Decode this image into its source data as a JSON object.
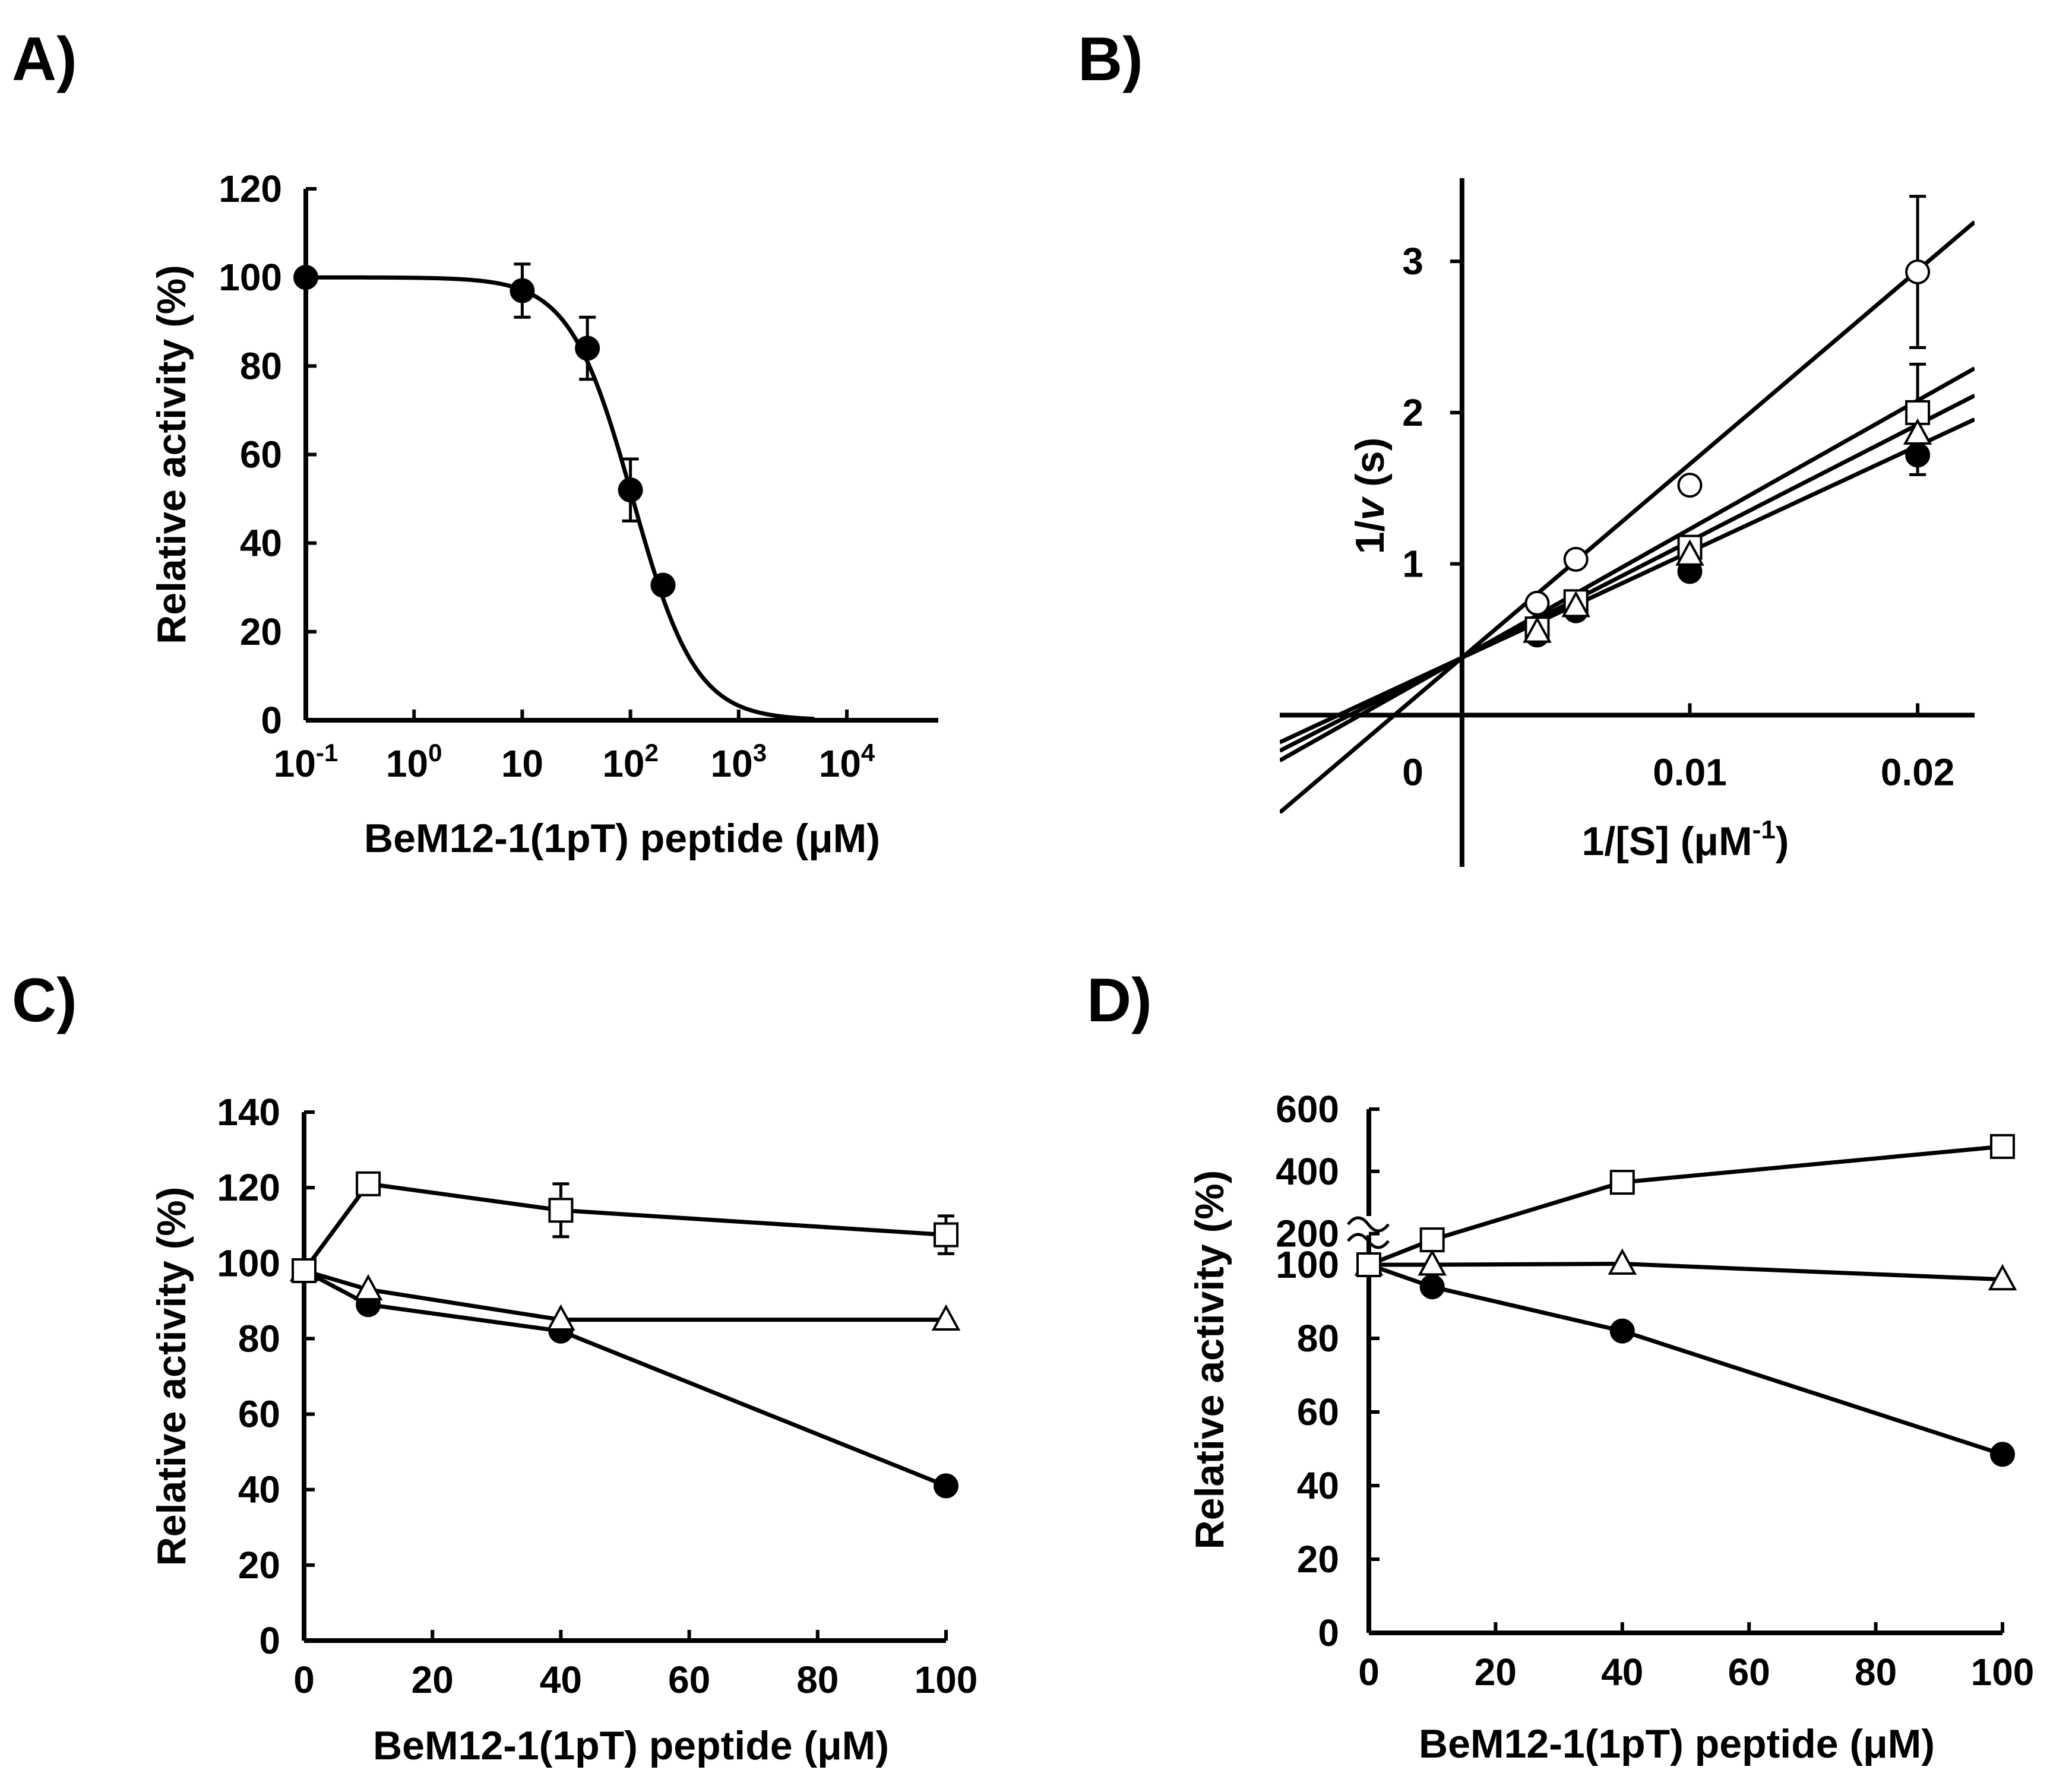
{
  "chart_data": [
    {
      "panel": "A)",
      "type": "scatter",
      "x_scale": "log",
      "xlabel": "BeM12-1(1pT) peptide (μM)",
      "ylabel": "Relative activity (%)",
      "xlim": [
        0.1,
        70000
      ],
      "ylim": [
        0,
        120
      ],
      "x_ticks": [
        0.1,
        1,
        10,
        100,
        1000,
        10000
      ],
      "x_tick_labels": [
        {
          "base": "10",
          "exp": "-1"
        },
        {
          "base": "10",
          "exp": "0"
        },
        {
          "base": "10",
          "exp": ""
        },
        {
          "base": "10",
          "exp": "2"
        },
        {
          "base": "10",
          "exp": "3"
        },
        {
          "base": "10",
          "exp": "4"
        }
      ],
      "y_ticks": [
        0,
        20,
        40,
        60,
        80,
        100,
        120
      ],
      "y_tick_labels": [
        "0",
        "20",
        "40",
        "60",
        "80",
        "100",
        "120"
      ],
      "series": [
        {
          "marker": "filled-circle",
          "points": [
            {
              "x": 0.1,
              "y": 100,
              "err": 0
            },
            {
              "x": 10,
              "y": 97,
              "err": 6
            },
            {
              "x": 40,
              "y": 84,
              "err": 7
            },
            {
              "x": 100,
              "y": 52,
              "err": 7
            },
            {
              "x": 200,
              "y": 30.5,
              "err": 0
            }
          ]
        }
      ],
      "fit": {
        "model": "sigmoid",
        "top": 100,
        "ic50": 105,
        "hill": 1.5
      }
    },
    {
      "panel": "B)",
      "type": "scatter",
      "xlabel": "1/[S] (μM",
      "xlabel_sup": "-1",
      "xlabel_tail": ")",
      "ylabel": "1/",
      "ylabel_italic": "v",
      "ylabel_tail": " (s)",
      "xlim": [
        -0.008,
        0.0225
      ],
      "ylim": [
        -0.65,
        3.55
      ],
      "x_ticks": [
        0.01,
        0.02
      ],
      "x_tick_labels": [
        "0.01",
        "0.02"
      ],
      "origin_label": "0",
      "y_ticks": [
        1,
        2,
        3
      ],
      "y_tick_labels": [
        "1",
        "2",
        "3"
      ],
      "series": [
        {
          "marker": "open-circle",
          "points": [
            {
              "x": 0.0033,
              "y": 0.74
            },
            {
              "x": 0.005,
              "y": 1.03
            },
            {
              "x": 0.01,
              "y": 1.52
            },
            {
              "x": 0.02,
              "y": 2.93,
              "err": 0.5
            }
          ],
          "line": {
            "slope": 128,
            "intercept": 0.38
          }
        },
        {
          "marker": "open-square",
          "points": [
            {
              "x": 0.0033,
              "y": 0.57
            },
            {
              "x": 0.005,
              "y": 0.75
            },
            {
              "x": 0.01,
              "y": 1.11
            },
            {
              "x": 0.02,
              "y": 2.0,
              "err": 0.32
            }
          ],
          "line": {
            "slope": 85,
            "intercept": 0.38
          }
        },
        {
          "marker": "open-triangle",
          "points": [
            {
              "x": 0.0033,
              "y": 0.55
            },
            {
              "x": 0.005,
              "y": 0.72
            },
            {
              "x": 0.01,
              "y": 1.06
            },
            {
              "x": 0.02,
              "y": 1.86
            }
          ],
          "line": {
            "slope": 77,
            "intercept": 0.38
          }
        },
        {
          "marker": "filled-circle",
          "points": [
            {
              "x": 0.0033,
              "y": 0.53
            },
            {
              "x": 0.005,
              "y": 0.69
            },
            {
              "x": 0.01,
              "y": 0.95
            },
            {
              "x": 0.02,
              "y": 1.72,
              "err": 0.13
            }
          ],
          "line": {
            "slope": 70,
            "intercept": 0.38
          }
        }
      ]
    },
    {
      "panel": "C)",
      "type": "line",
      "xlabel": "BeM12-1(1pT) peptide (μM)",
      "ylabel": "Relative activity (%)",
      "xlim": [
        0,
        100
      ],
      "ylim": [
        0,
        140
      ],
      "x_ticks": [
        0,
        20,
        40,
        60,
        80,
        100
      ],
      "x_tick_labels": [
        "0",
        "20",
        "40",
        "60",
        "80",
        "100"
      ],
      "y_ticks": [
        0,
        20,
        40,
        60,
        80,
        100,
        120,
        140
      ],
      "y_tick_labels": [
        "0",
        "20",
        "40",
        "60",
        "80",
        "100",
        "120",
        "140"
      ],
      "series": [
        {
          "marker": "open-square",
          "points": [
            {
              "x": 0,
              "y": 98
            },
            {
              "x": 10,
              "y": 121
            },
            {
              "x": 40,
              "y": 114,
              "err": 7
            },
            {
              "x": 100,
              "y": 107.5,
              "err": 5
            }
          ]
        },
        {
          "marker": "open-triangle",
          "points": [
            {
              "x": 0,
              "y": 98
            },
            {
              "x": 10,
              "y": 93
            },
            {
              "x": 40,
              "y": 85
            },
            {
              "x": 100,
              "y": 85
            }
          ]
        },
        {
          "marker": "filled-circle",
          "points": [
            {
              "x": 0,
              "y": 98
            },
            {
              "x": 10,
              "y": 89
            },
            {
              "x": 40,
              "y": 82
            },
            {
              "x": 100,
              "y": 41
            }
          ]
        }
      ]
    },
    {
      "panel": "D)",
      "type": "line",
      "y_axis_break": true,
      "xlabel": "BeM12-1(1pT) peptide (μM)",
      "ylabel": "Relative activity (%)",
      "xlim": [
        0,
        100
      ],
      "x_ticks": [
        0,
        20,
        40,
        60,
        80,
        100
      ],
      "x_tick_labels": [
        "0",
        "20",
        "40",
        "60",
        "80",
        "100"
      ],
      "y_lower": {
        "ylim": [
          0,
          100
        ],
        "ticks": [
          0,
          20,
          40,
          60,
          80,
          100
        ],
        "tick_labels": [
          "0",
          "20",
          "40",
          "60",
          "80",
          "100"
        ]
      },
      "y_upper": {
        "ylim": [
          100,
          600
        ],
        "ticks": [
          200,
          400,
          600
        ],
        "tick_labels": [
          "200",
          "400",
          "600"
        ]
      },
      "series": [
        {
          "marker": "open-square",
          "points": [
            {
              "x": 0,
              "y": 100
            },
            {
              "x": 10,
              "y": 180
            },
            {
              "x": 40,
              "y": 365
            },
            {
              "x": 100,
              "y": 480
            }
          ]
        },
        {
          "marker": "open-triangle",
          "points": [
            {
              "x": 0,
              "y": 100
            },
            {
              "x": 10,
              "y": 100
            },
            {
              "x": 40,
              "y": 103
            },
            {
              "x": 100,
              "y": 96
            }
          ]
        },
        {
          "marker": "filled-circle",
          "points": [
            {
              "x": 0,
              "y": 100
            },
            {
              "x": 10,
              "y": 94
            },
            {
              "x": 40,
              "y": 82
            },
            {
              "x": 100,
              "y": 48.5
            }
          ]
        }
      ]
    }
  ]
}
